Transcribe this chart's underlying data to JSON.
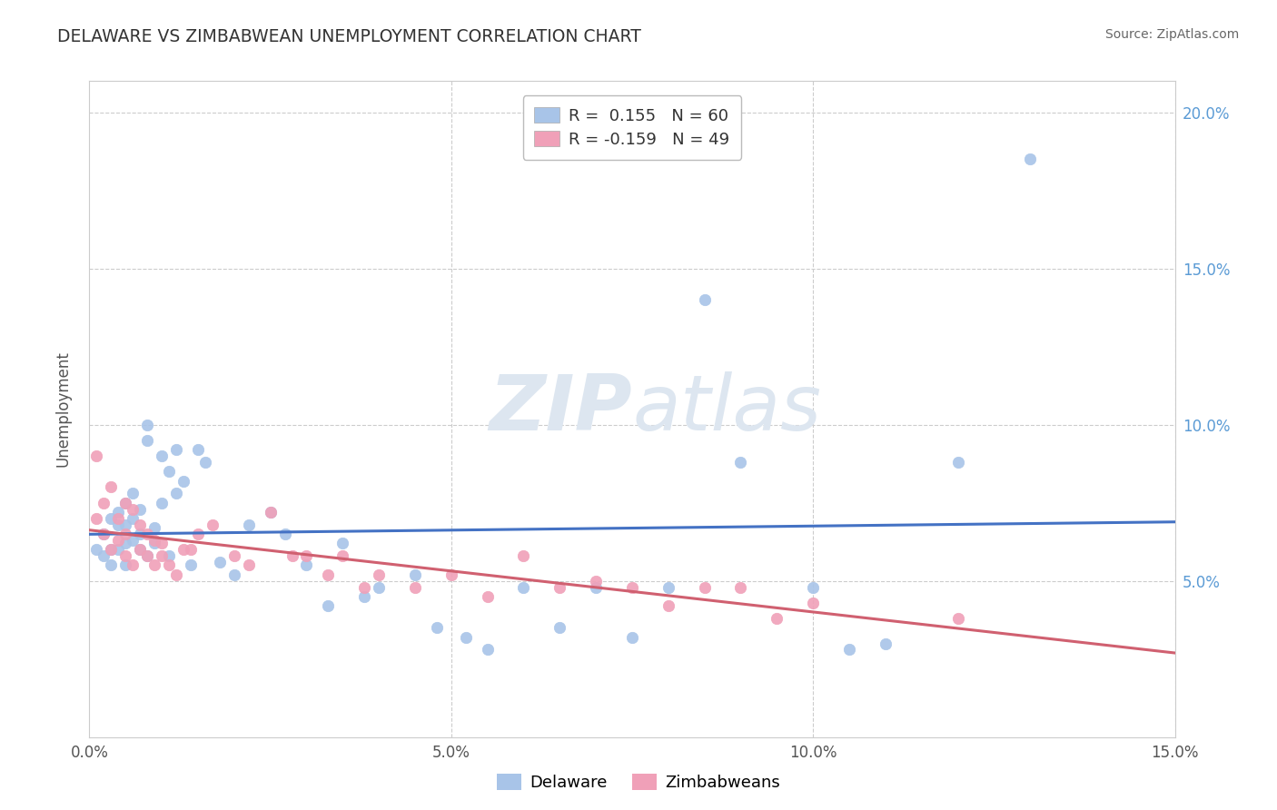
{
  "title": "DELAWARE VS ZIMBABWEAN UNEMPLOYMENT CORRELATION CHART",
  "source": "Source: ZipAtlas.com",
  "ylabel": "Unemployment",
  "xlim": [
    0.0,
    0.15
  ],
  "ylim": [
    0.0,
    0.21
  ],
  "xticks": [
    0.0,
    0.05,
    0.1,
    0.15
  ],
  "xtick_labels": [
    "0.0%",
    "5.0%",
    "10.0%",
    "15.0%"
  ],
  "yticks": [
    0.0,
    0.05,
    0.1,
    0.15,
    0.2
  ],
  "ytick_labels_right": [
    "",
    "5.0%",
    "10.0%",
    "15.0%",
    "20.0%"
  ],
  "delaware_color": "#a8c4e8",
  "zimbabwean_color": "#f0a0b8",
  "delaware_R": 0.155,
  "delaware_N": 60,
  "zimbabwean_R": -0.159,
  "zimbabwean_N": 49,
  "delaware_line_color": "#4472c4",
  "zimbabwean_line_color": "#d06070",
  "watermark_zip": "ZIP",
  "watermark_atlas": "atlas",
  "watermark_color": "#dde6f0",
  "background_color": "#ffffff",
  "grid_color": "#cccccc",
  "right_axis_label_color": "#5b9bd5",
  "delaware_x": [
    0.001,
    0.002,
    0.002,
    0.003,
    0.003,
    0.003,
    0.004,
    0.004,
    0.004,
    0.005,
    0.005,
    0.005,
    0.005,
    0.006,
    0.006,
    0.006,
    0.007,
    0.007,
    0.007,
    0.008,
    0.008,
    0.008,
    0.009,
    0.009,
    0.01,
    0.01,
    0.011,
    0.011,
    0.012,
    0.012,
    0.013,
    0.014,
    0.015,
    0.016,
    0.018,
    0.02,
    0.022,
    0.025,
    0.027,
    0.03,
    0.033,
    0.035,
    0.038,
    0.04,
    0.045,
    0.048,
    0.052,
    0.055,
    0.06,
    0.065,
    0.07,
    0.075,
    0.08,
    0.085,
    0.09,
    0.1,
    0.105,
    0.11,
    0.12,
    0.13
  ],
  "delaware_y": [
    0.06,
    0.065,
    0.058,
    0.07,
    0.055,
    0.06,
    0.06,
    0.068,
    0.072,
    0.055,
    0.062,
    0.068,
    0.075,
    0.063,
    0.07,
    0.078,
    0.06,
    0.065,
    0.073,
    0.095,
    0.1,
    0.058,
    0.062,
    0.067,
    0.075,
    0.09,
    0.085,
    0.058,
    0.092,
    0.078,
    0.082,
    0.055,
    0.092,
    0.088,
    0.056,
    0.052,
    0.068,
    0.072,
    0.065,
    0.055,
    0.042,
    0.062,
    0.045,
    0.048,
    0.052,
    0.035,
    0.032,
    0.028,
    0.048,
    0.035,
    0.048,
    0.032,
    0.048,
    0.14,
    0.088,
    0.048,
    0.028,
    0.03,
    0.088,
    0.185
  ],
  "zimbabwean_x": [
    0.001,
    0.001,
    0.002,
    0.002,
    0.003,
    0.003,
    0.004,
    0.004,
    0.005,
    0.005,
    0.005,
    0.006,
    0.006,
    0.007,
    0.007,
    0.008,
    0.008,
    0.009,
    0.009,
    0.01,
    0.01,
    0.011,
    0.012,
    0.013,
    0.014,
    0.015,
    0.017,
    0.02,
    0.022,
    0.025,
    0.028,
    0.03,
    0.033,
    0.035,
    0.038,
    0.04,
    0.045,
    0.05,
    0.055,
    0.06,
    0.065,
    0.07,
    0.075,
    0.08,
    0.085,
    0.09,
    0.095,
    0.1,
    0.12
  ],
  "zimbabwean_y": [
    0.09,
    0.07,
    0.065,
    0.075,
    0.06,
    0.08,
    0.063,
    0.07,
    0.058,
    0.065,
    0.075,
    0.055,
    0.073,
    0.06,
    0.068,
    0.058,
    0.065,
    0.055,
    0.063,
    0.062,
    0.058,
    0.055,
    0.052,
    0.06,
    0.06,
    0.065,
    0.068,
    0.058,
    0.055,
    0.072,
    0.058,
    0.058,
    0.052,
    0.058,
    0.048,
    0.052,
    0.048,
    0.052,
    0.045,
    0.058,
    0.048,
    0.05,
    0.048,
    0.042,
    0.048,
    0.048,
    0.038,
    0.043,
    0.038
  ]
}
